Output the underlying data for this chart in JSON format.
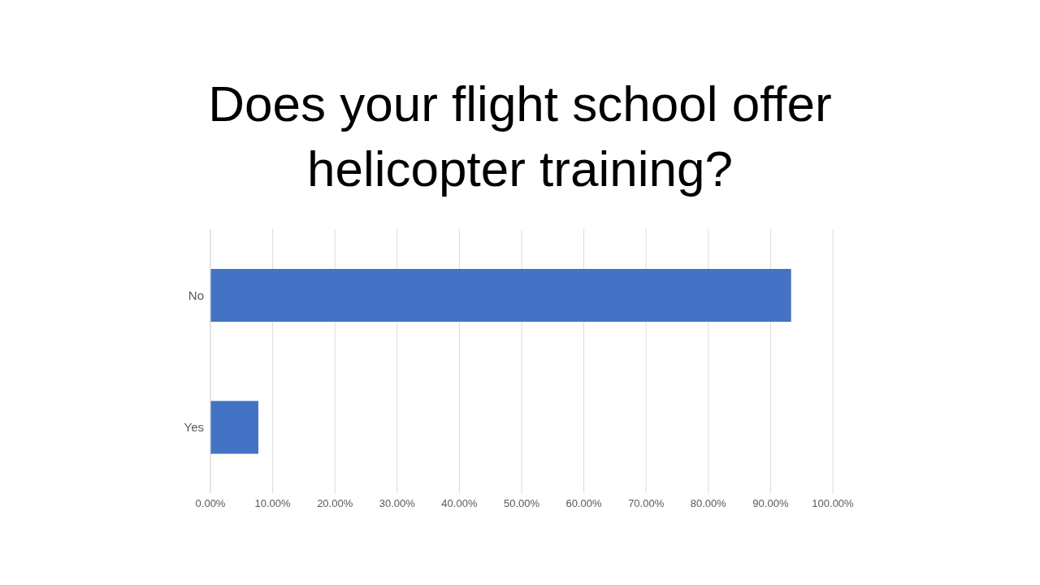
{
  "chart_data": {
    "type": "bar",
    "orientation": "horizontal",
    "title": "Does your flight school offer helicopter training?",
    "categories": [
      "No",
      "Yes"
    ],
    "values": [
      93.3,
      7.7
    ],
    "color": "#4472c4",
    "xlim": [
      0,
      100
    ],
    "xticks": [
      {
        "value": 0,
        "label": "0.00%"
      },
      {
        "value": 10,
        "label": "10.00%"
      },
      {
        "value": 20,
        "label": "20.00%"
      },
      {
        "value": 30,
        "label": "30.00%"
      },
      {
        "value": 40,
        "label": "40.00%"
      },
      {
        "value": 50,
        "label": "50.00%"
      },
      {
        "value": 60,
        "label": "60.00%"
      },
      {
        "value": 70,
        "label": "70.00%"
      },
      {
        "value": 80,
        "label": "80.00%"
      },
      {
        "value": 90,
        "label": "90.00%"
      },
      {
        "value": 100,
        "label": "100.00%"
      }
    ],
    "grid": "x"
  }
}
